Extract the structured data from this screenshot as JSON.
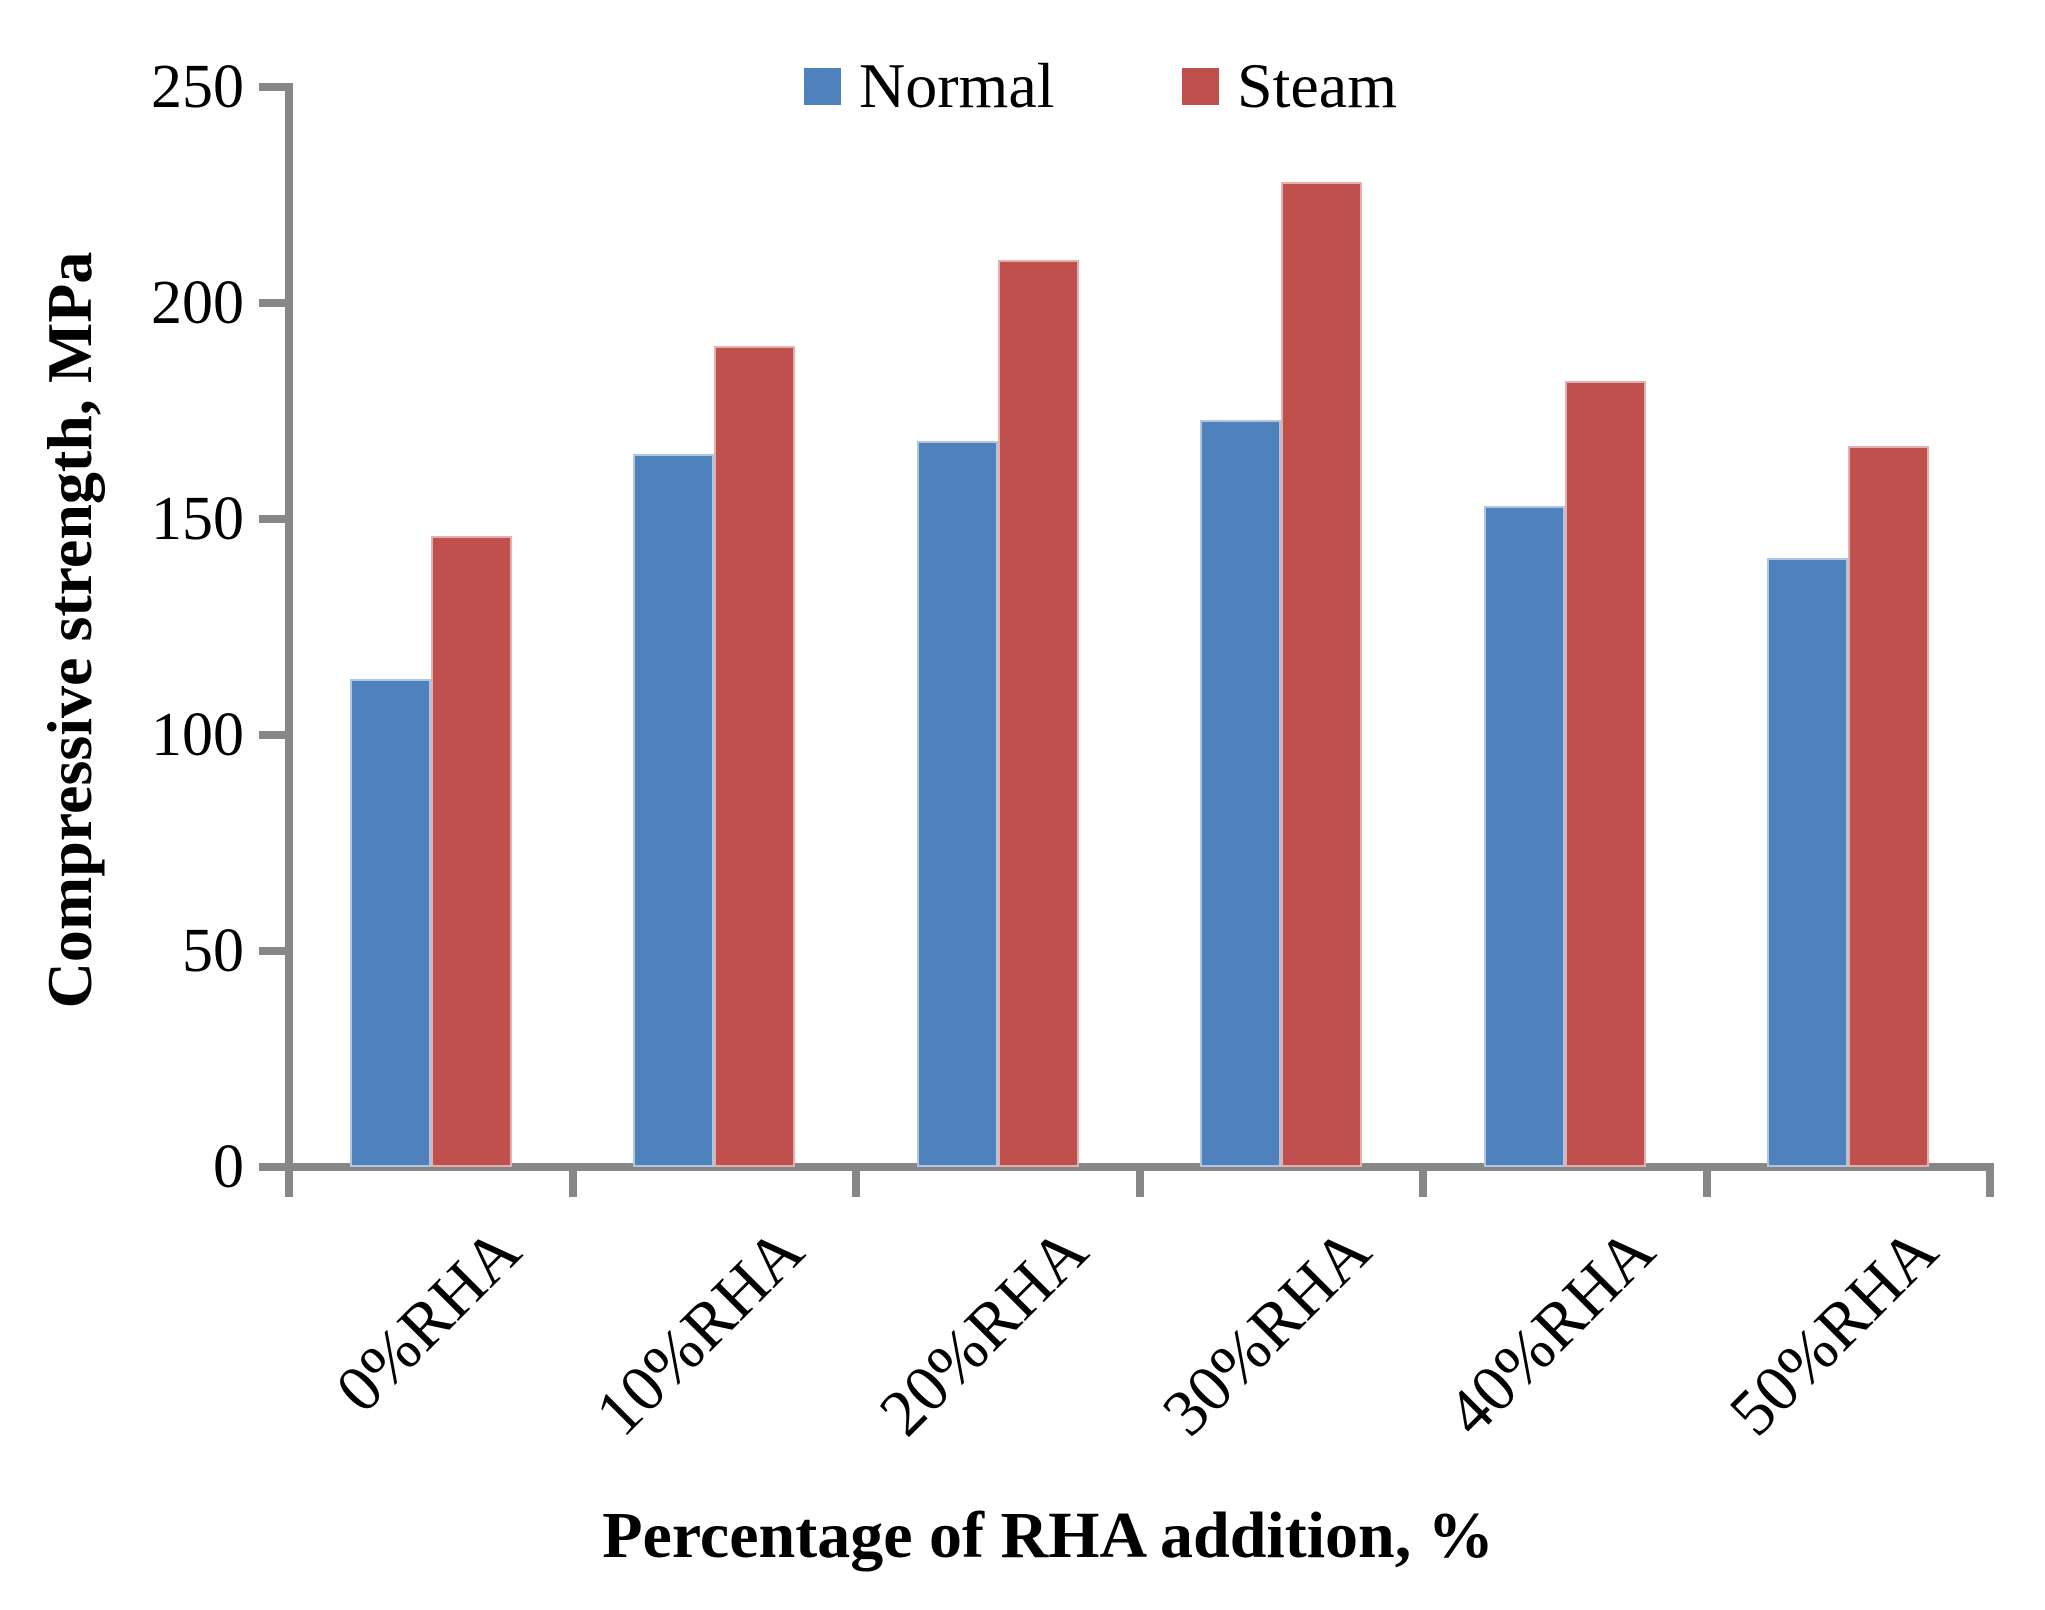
{
  "chart_data": {
    "type": "bar",
    "title": "",
    "categories": [
      "0%RHA",
      "10%RHA",
      "20%RHA",
      "30%RHA",
      "40%RHA",
      "50%RHA"
    ],
    "series": [
      {
        "name": "Normal",
        "color": "#4F81BD",
        "values": [
          113,
          165,
          168,
          173,
          153,
          141
        ]
      },
      {
        "name": "Steam",
        "color": "#C0504D",
        "values": [
          146,
          190,
          210,
          228,
          182,
          167
        ]
      }
    ],
    "xlabel": "Percentage of RHA addition, %",
    "ylabel": "Compressive strength, MPa",
    "ylim": [
      0,
      250
    ],
    "yticks": [
      0,
      50,
      100,
      150,
      200,
      250
    ],
    "grid": false,
    "legend_position": "top",
    "axis_color": "#878787"
  }
}
